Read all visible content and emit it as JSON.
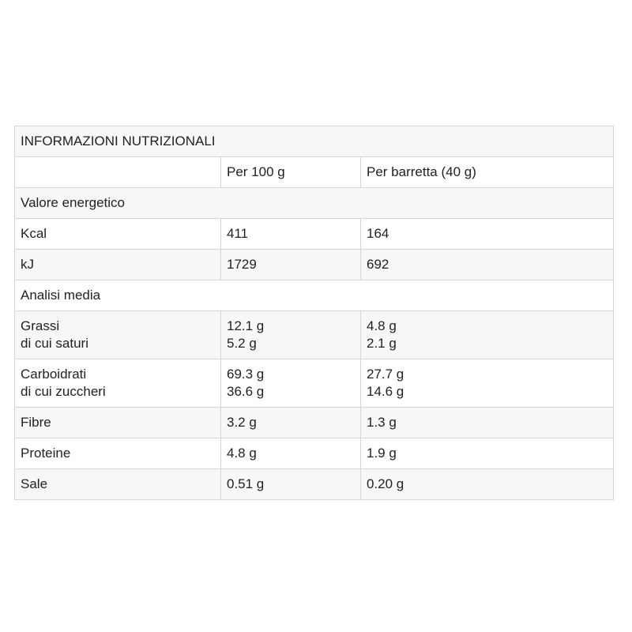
{
  "table": {
    "title": "INFORMAZIONI NUTRIZIONALI",
    "columns": [
      "Per 100 g",
      "Per barretta (40 g)"
    ],
    "rows": [
      [
        [
          "Valore energetico"
        ]
      ],
      [
        [
          "Kcal"
        ],
        [
          "411"
        ],
        [
          "164"
        ]
      ],
      [
        [
          "kJ"
        ],
        [
          "1729"
        ],
        [
          "692"
        ]
      ],
      [
        [
          "Analisi media"
        ]
      ],
      [
        [
          "Grassi",
          "di cui saturi"
        ],
        [
          "12.1 g",
          "5.2 g"
        ],
        [
          "4.8 g",
          "2.1 g"
        ]
      ],
      [
        [
          "Carboidrati",
          "di cui zuccheri"
        ],
        [
          "69.3 g",
          "36.6 g"
        ],
        [
          "27.7 g",
          "14.6 g"
        ]
      ],
      [
        [
          "Fibre"
        ],
        [
          "3.2 g"
        ],
        [
          "1.3 g"
        ]
      ],
      [
        [
          "Proteine"
        ],
        [
          "4.8 g"
        ],
        [
          "1.9 g"
        ]
      ],
      [
        [
          "Sale"
        ],
        [
          "0.51 g"
        ],
        [
          "0.20 g"
        ]
      ]
    ]
  }
}
